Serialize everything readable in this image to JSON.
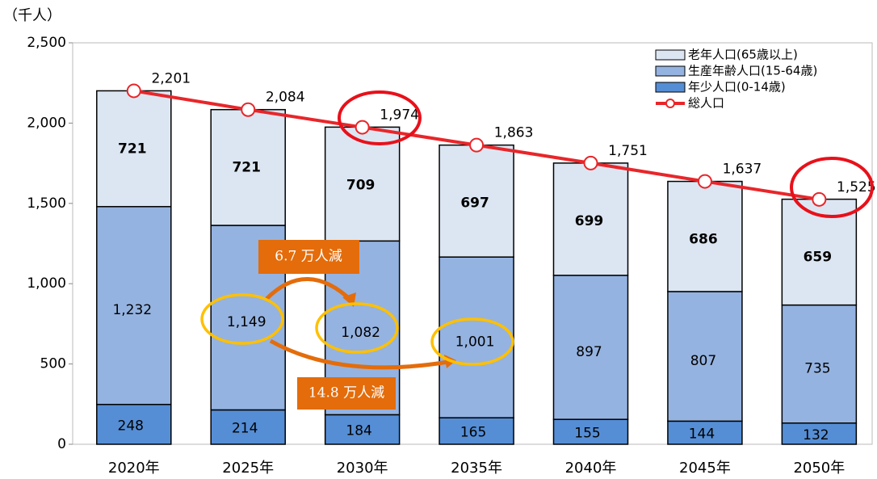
{
  "chart_data": {
    "type": "bar",
    "unit_label": "（千人）",
    "categories": [
      "2020年",
      "2025年",
      "2030年",
      "2035年",
      "2040年",
      "2045年",
      "2050年"
    ],
    "series": [
      {
        "name": "年少人口(0-14歳)",
        "color": "#558ed5",
        "values": [
          248,
          214,
          184,
          165,
          155,
          144,
          132
        ]
      },
      {
        "name": "生産年齢人口(15-64歳)",
        "color": "#95b3e0",
        "values": [
          1232,
          1149,
          1082,
          1001,
          897,
          807,
          735
        ],
        "value_labels": [
          "1,232",
          "1,149",
          "1,082",
          "1,001",
          "897",
          "807",
          "735"
        ]
      },
      {
        "name": "老年人口(65歳以上)",
        "color": "#dce6f2",
        "values": [
          721,
          721,
          709,
          697,
          699,
          686,
          659
        ]
      },
      {
        "name": "総人口",
        "type": "line",
        "color": "#e8262a",
        "values": [
          2201,
          2084,
          1974,
          1863,
          1751,
          1637,
          1525
        ],
        "value_labels": [
          "2,201",
          "2,084",
          "1,974",
          "1,863",
          "1,751",
          "1,637",
          "1,525"
        ]
      }
    ],
    "annotations": [
      "6.7 万人減",
      "14.8 万人減"
    ],
    "ylim": [
      0,
      2500
    ],
    "yticks": [
      0,
      500,
      {
        "value": 1000,
        "label": "1,000"
      },
      {
        "value": 1500,
        "label": "1,500"
      },
      {
        "value": 2000,
        "label": "2,000"
      },
      {
        "value": 2500,
        "label": "2,500"
      }
    ],
    "grid": false,
    "legend": "upper right"
  }
}
